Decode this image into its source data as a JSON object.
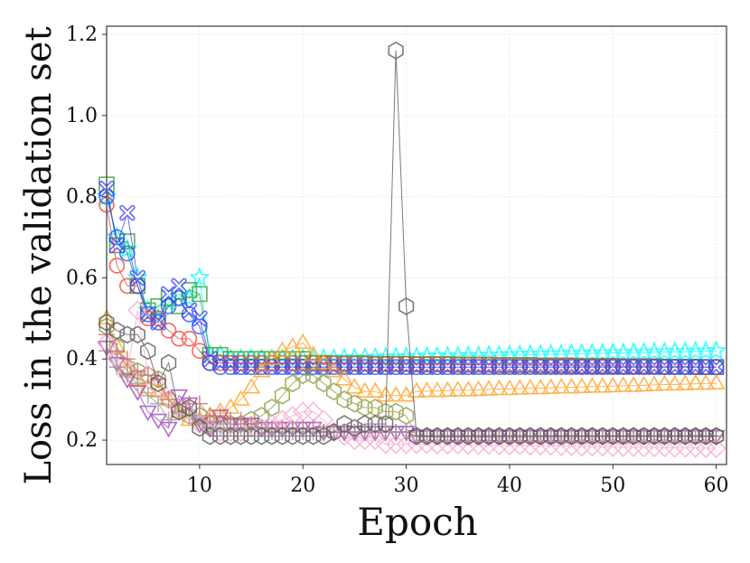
{
  "chart_data": {
    "type": "line",
    "xlabel": "Epoch",
    "ylabel": "Loss in the validation set",
    "xlim": [
      1,
      61
    ],
    "ylim": [
      0.14,
      1.22
    ],
    "xticks": [
      10,
      20,
      30,
      40,
      50,
      60
    ],
    "yticks": [
      0.2,
      0.4,
      0.6,
      0.8,
      1.0,
      1.2
    ],
    "xtick_labels": [
      "10",
      "20",
      "30",
      "40",
      "50",
      "60"
    ],
    "ytick_labels": [
      "0.2",
      "0.4",
      "0.6",
      "0.8",
      "1.0",
      "1.2"
    ],
    "grid": true,
    "series": [
      {
        "name": "s1-cyan-star",
        "color": "#00ffff",
        "marker": "star",
        "head": [
          0.8,
          0.7,
          0.67,
          0.6,
          0.52,
          0.5,
          0.54,
          0.56,
          0.55,
          0.6,
          0.41,
          0.41,
          0.4,
          0.4,
          0.4,
          0.4,
          0.4,
          0.4,
          0.4,
          0.4
        ],
        "tail": {
          "from": 21,
          "start": 0.4,
          "end": 0.42
        }
      },
      {
        "name": "s2-green-square",
        "color": "#2ca02c",
        "marker": "square",
        "head": [
          0.83,
          0.68,
          0.69,
          0.58,
          0.52,
          0.53,
          0.55,
          0.53,
          0.57,
          0.56,
          0.41,
          0.41,
          0.4,
          0.4,
          0.4,
          0.4,
          0.4,
          0.4,
          0.4,
          0.4
        ],
        "tail": {
          "from": 21,
          "start": 0.39,
          "end": 0.38
        }
      },
      {
        "name": "s3-blue-x",
        "color": "#4444ee",
        "marker": "x",
        "head": [
          0.82,
          0.68,
          0.76,
          0.6,
          0.51,
          0.49,
          0.56,
          0.58,
          0.52,
          0.5,
          0.4,
          0.39,
          0.39,
          0.38,
          0.38,
          0.38,
          0.38,
          0.38,
          0.38,
          0.38
        ],
        "tail": {
          "from": 21,
          "start": 0.38,
          "end": 0.38
        }
      },
      {
        "name": "s4-red-circle",
        "color": "#f04030",
        "marker": "circle",
        "head": [
          0.78,
          0.63,
          0.58,
          0.58,
          0.5,
          0.5,
          0.47,
          0.45,
          0.45,
          0.42,
          0.39,
          0.39,
          0.39,
          0.39,
          0.39,
          0.39,
          0.39,
          0.39,
          0.39,
          0.39
        ],
        "tail": {
          "from": 21,
          "start": 0.39,
          "end": 0.38
        }
      },
      {
        "name": "s5-blue-circle",
        "color": "#2050ff",
        "marker": "circle",
        "head": [
          0.8,
          0.7,
          0.66,
          0.58,
          0.51,
          0.49,
          0.53,
          0.55,
          0.51,
          0.48,
          0.39,
          0.38,
          0.38,
          0.38,
          0.38,
          0.38,
          0.38,
          0.38,
          0.38,
          0.38
        ],
        "tail": {
          "from": 21,
          "start": 0.38,
          "end": 0.38
        }
      },
      {
        "name": "s6-orange-triangle",
        "color": "#ffa020",
        "marker": "triangle-up",
        "head": [
          0.5,
          0.43,
          0.37,
          0.35,
          0.33,
          0.32,
          0.3,
          0.27,
          0.25,
          0.25,
          0.26,
          0.27,
          0.28,
          0.3,
          0.33,
          0.37,
          0.4,
          0.42,
          0.43,
          0.44,
          0.41,
          0.39,
          0.37,
          0.35,
          0.33,
          0.32,
          0.32,
          0.31,
          0.31,
          0.31
        ],
        "tail": {
          "from": 31,
          "start": 0.32,
          "end": 0.34
        }
      },
      {
        "name": "s7-olive-hexagon",
        "color": "#8a9a3a",
        "marker": "hexagon",
        "head": [
          0.48,
          0.43,
          0.38,
          0.37,
          0.36,
          0.35,
          0.3,
          0.28,
          0.26,
          0.26,
          0.24,
          0.24,
          0.24,
          0.24,
          0.25,
          0.26,
          0.28,
          0.31,
          0.34,
          0.36,
          0.36,
          0.34,
          0.32,
          0.3,
          0.29,
          0.28,
          0.28,
          0.27,
          0.27,
          0.26
        ],
        "tail": {
          "from": 31,
          "start": 0.21,
          "end": 0.21
        }
      },
      {
        "name": "s8-purple-triangle-down",
        "color": "#9b3fb5",
        "marker": "triangle-down",
        "head": [
          0.43,
          0.39,
          0.35,
          0.32,
          0.27,
          0.25,
          0.23,
          0.31,
          0.29,
          0.24,
          0.23,
          0.26,
          0.24,
          0.24,
          0.24,
          0.23,
          0.23,
          0.23,
          0.23,
          0.23,
          0.23,
          0.22,
          0.22,
          0.22,
          0.22,
          0.22,
          0.22,
          0.22,
          0.22,
          0.22
        ],
        "tail": {
          "from": 31,
          "start": 0.21,
          "end": 0.21
        }
      },
      {
        "name": "s9-pink-diamond",
        "color": "#f7a8d0",
        "marker": "diamond",
        "head": [
          0.44,
          0.4,
          0.37,
          0.52,
          0.36,
          0.33,
          0.3,
          0.28,
          0.26,
          0.24,
          0.23,
          0.22,
          0.22,
          0.22,
          0.23,
          0.23,
          0.24,
          0.25,
          0.26,
          0.27,
          0.27,
          0.25,
          0.22,
          0.21,
          0.2,
          0.2,
          0.2,
          0.19,
          0.19,
          0.19
        ],
        "tail": {
          "from": 31,
          "start": 0.19,
          "end": 0.18
        }
      },
      {
        "name": "s10-brown-plus",
        "color": "#c87070",
        "marker": "plus",
        "head": [
          0.46,
          0.42,
          0.4,
          0.37,
          0.36,
          0.35,
          0.3,
          0.27,
          0.29,
          0.29,
          0.26,
          0.26,
          0.25,
          0.25,
          0.24,
          0.23,
          0.23,
          0.23,
          0.23,
          0.23,
          0.23,
          0.22,
          0.22,
          0.22,
          0.22,
          0.22,
          0.22,
          0.22,
          0.22,
          0.22
        ],
        "tail": {
          "from": 31,
          "start": 0.21,
          "end": 0.21
        }
      },
      {
        "name": "s11-gray-plus",
        "color": "#999999",
        "marker": "plus",
        "head": [
          0.42,
          0.38,
          0.36,
          0.34,
          0.31,
          0.29,
          0.25,
          0.27,
          0.26,
          0.25,
          0.23,
          0.23,
          0.23,
          0.23,
          0.23,
          0.23,
          0.22,
          0.22,
          0.22,
          0.22,
          0.22,
          0.22,
          0.22,
          0.22,
          0.22,
          0.22,
          0.22,
          0.22,
          0.22,
          0.22
        ],
        "tail": {
          "from": 31,
          "start": 0.21,
          "end": 0.21
        }
      },
      {
        "name": "s12-darkgray-hexagon",
        "color": "#555555",
        "marker": "hexagon",
        "head": [
          0.49,
          0.47,
          0.46,
          0.46,
          0.42,
          0.34,
          0.39,
          0.27,
          0.28,
          0.23,
          0.21,
          0.21,
          0.21,
          0.21,
          0.21,
          0.21,
          0.21,
          0.21,
          0.21,
          0.21,
          0.21,
          0.21,
          0.22,
          0.24,
          0.23,
          0.24,
          0.24,
          0.24,
          1.16,
          0.53
        ],
        "tail": {
          "from": 31,
          "start": 0.21,
          "end": 0.21
        }
      }
    ]
  }
}
